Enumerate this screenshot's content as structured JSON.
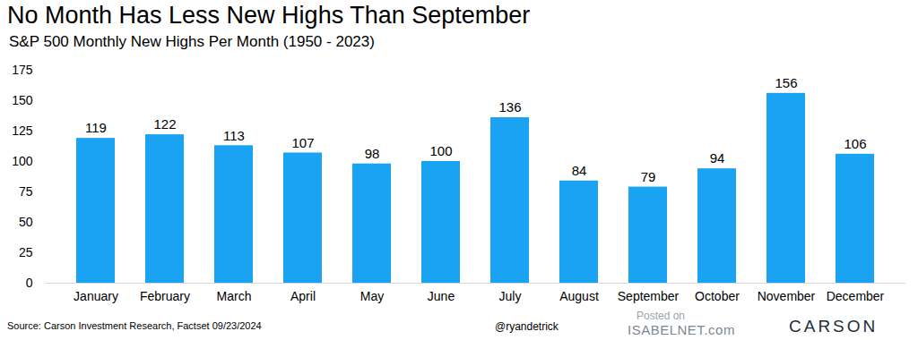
{
  "chart_data": {
    "type": "bar",
    "title": "No Month Has Less New Highs Than September",
    "subtitle": "S&P 500 Monthly New Highs Per Month (1950 - 2023)",
    "categories": [
      "January",
      "February",
      "March",
      "April",
      "May",
      "June",
      "July",
      "August",
      "September",
      "October",
      "November",
      "December"
    ],
    "values": [
      119,
      122,
      113,
      107,
      98,
      100,
      136,
      84,
      79,
      94,
      156,
      106
    ],
    "color": "#1aa3f2",
    "ylim": [
      0,
      175
    ],
    "yticks": [
      0,
      25,
      50,
      75,
      100,
      125,
      150,
      175
    ],
    "grid": false,
    "data_labels": true,
    "source": "Source: Carson Investment Research, Factset 09/23/2024",
    "annotations": [
      "@ryandetrick",
      "Posted on",
      "ISABELNET.com",
      "CARSON"
    ]
  }
}
